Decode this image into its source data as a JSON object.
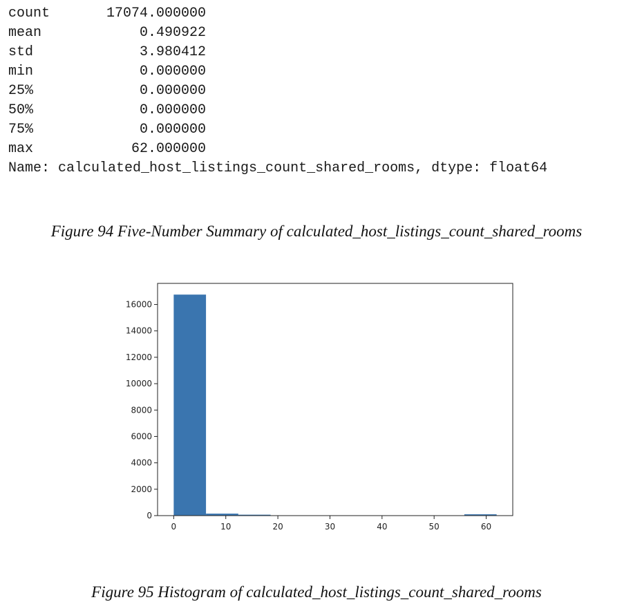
{
  "summary": {
    "rows": [
      {
        "key": "count",
        "value": "17074.000000"
      },
      {
        "key": "mean",
        "value": "0.490922"
      },
      {
        "key": "std",
        "value": "3.980412"
      },
      {
        "key": "min",
        "value": "0.000000"
      },
      {
        "key": "25%",
        "value": "0.000000"
      },
      {
        "key": "50%",
        "value": "0.000000"
      },
      {
        "key": "75%",
        "value": "0.000000"
      },
      {
        "key": "max",
        "value": "62.000000"
      }
    ],
    "footer": "Name: calculated_host_listings_count_shared_rooms, dtype: float64"
  },
  "captions": {
    "fig94": "Figure 94 Five-Number Summary of calculated_host_listings_count_shared_rooms",
    "fig95": "Figure 95 Histogram of calculated_host_listings_count_shared_rooms"
  },
  "chart_data": {
    "type": "bar",
    "title": "",
    "xlabel": "",
    "ylabel": "",
    "bin_edges": [
      0,
      6.2,
      12.4,
      18.6,
      24.8,
      31.0,
      37.2,
      43.4,
      49.6,
      55.8,
      62.0
    ],
    "values": [
      16750,
      150,
      70,
      0,
      0,
      0,
      0,
      0,
      0,
      100
    ],
    "xlim": [
      -3.1,
      65.1
    ],
    "ylim": [
      0,
      17600
    ],
    "xticks": [
      0,
      10,
      20,
      30,
      40,
      50,
      60
    ],
    "yticks": [
      0,
      2000,
      4000,
      6000,
      8000,
      10000,
      12000,
      14000,
      16000
    ],
    "bar_color": "#3a75af",
    "grid": false
  }
}
